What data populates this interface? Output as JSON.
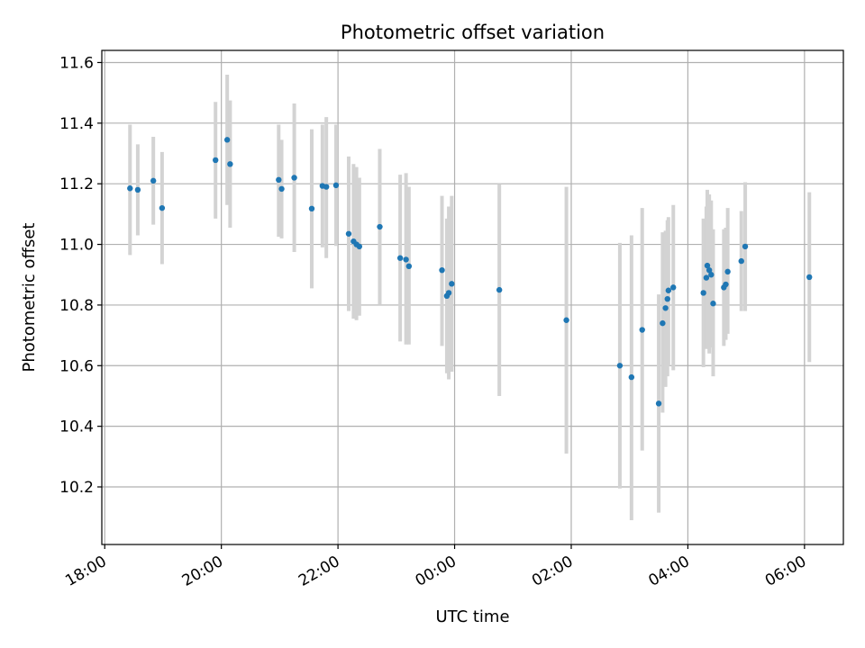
{
  "chart_data": {
    "type": "scatter",
    "title": "Photometric offset variation",
    "xlabel": "UTC time",
    "ylabel": "Photometric offset",
    "xlim": [
      "17:57",
      "06:40"
    ],
    "ylim": [
      10.01,
      11.64
    ],
    "grid": true,
    "legend": "none",
    "x_ticks": [
      "18:00",
      "20:00",
      "22:00",
      "00:00",
      "02:00",
      "04:00",
      "06:00"
    ],
    "y_ticks": [
      "10.2",
      "10.4",
      "10.6",
      "10.8",
      "11.0",
      "11.2",
      "11.4",
      "11.6"
    ],
    "colors": {
      "points": "#1f77b4",
      "errorbars": "#d3d3d3",
      "grid": "#b0b0b0"
    },
    "points": [
      {
        "x": "18:26",
        "y": 11.185,
        "lo": 10.965,
        "hi": 11.395
      },
      {
        "x": "18:34",
        "y": 11.18,
        "lo": 11.03,
        "hi": 11.33
      },
      {
        "x": "18:50",
        "y": 11.21,
        "lo": 11.065,
        "hi": 11.355
      },
      {
        "x": "18:59",
        "y": 11.12,
        "lo": 10.935,
        "hi": 11.305
      },
      {
        "x": "19:54",
        "y": 11.278,
        "lo": 11.085,
        "hi": 11.47
      },
      {
        "x": "20:06",
        "y": 11.345,
        "lo": 11.13,
        "hi": 11.56
      },
      {
        "x": "20:09",
        "y": 11.265,
        "lo": 11.055,
        "hi": 11.475
      },
      {
        "x": "20:59",
        "y": 11.213,
        "lo": 11.025,
        "hi": 11.395
      },
      {
        "x": "21:02",
        "y": 11.183,
        "lo": 11.02,
        "hi": 11.345
      },
      {
        "x": "21:15",
        "y": 11.22,
        "lo": 10.975,
        "hi": 11.465
      },
      {
        "x": "21:33",
        "y": 11.118,
        "lo": 10.855,
        "hi": 11.38
      },
      {
        "x": "21:44",
        "y": 11.193,
        "lo": 10.99,
        "hi": 11.395
      },
      {
        "x": "21:48",
        "y": 11.19,
        "lo": 10.955,
        "hi": 11.42
      },
      {
        "x": "21:58",
        "y": 11.195,
        "lo": 10.995,
        "hi": 11.395
      },
      {
        "x": "22:11",
        "y": 11.035,
        "lo": 10.78,
        "hi": 11.29
      },
      {
        "x": "22:16",
        "y": 11.01,
        "lo": 10.755,
        "hi": 11.265
      },
      {
        "x": "22:19",
        "y": 11.0,
        "lo": 10.75,
        "hi": 11.255
      },
      {
        "x": "22:22",
        "y": 10.993,
        "lo": 10.765,
        "hi": 11.22
      },
      {
        "x": "22:43",
        "y": 11.058,
        "lo": 10.8,
        "hi": 11.315
      },
      {
        "x": "23:04",
        "y": 10.955,
        "lo": 10.68,
        "hi": 11.23
      },
      {
        "x": "23:10",
        "y": 10.95,
        "lo": 10.67,
        "hi": 11.235
      },
      {
        "x": "23:13",
        "y": 10.928,
        "lo": 10.67,
        "hi": 11.19
      },
      {
        "x": "23:47",
        "y": 10.915,
        "lo": 10.665,
        "hi": 11.16
      },
      {
        "x": "23:52",
        "y": 10.83,
        "lo": 10.575,
        "hi": 11.085
      },
      {
        "x": "23:54",
        "y": 10.84,
        "lo": 10.555,
        "hi": 11.125
      },
      {
        "x": "23:57",
        "y": 10.87,
        "lo": 10.58,
        "hi": 11.16
      },
      {
        "x": "00:46",
        "y": 10.85,
        "lo": 10.5,
        "hi": 11.2
      },
      {
        "x": "01:55",
        "y": 10.75,
        "lo": 10.31,
        "hi": 11.19
      },
      {
        "x": "02:50",
        "y": 10.6,
        "lo": 10.195,
        "hi": 11.005
      },
      {
        "x": "03:02",
        "y": 10.562,
        "lo": 10.09,
        "hi": 11.03
      },
      {
        "x": "03:13",
        "y": 10.718,
        "lo": 10.32,
        "hi": 11.12
      },
      {
        "x": "03:30",
        "y": 10.475,
        "lo": 10.115,
        "hi": 10.835
      },
      {
        "x": "03:34",
        "y": 10.74,
        "lo": 10.445,
        "hi": 11.04
      },
      {
        "x": "03:37",
        "y": 10.79,
        "lo": 10.53,
        "hi": 11.045
      },
      {
        "x": "03:39",
        "y": 10.82,
        "lo": 10.565,
        "hi": 11.08
      },
      {
        "x": "03:40",
        "y": 10.848,
        "lo": 10.6,
        "hi": 11.09
      },
      {
        "x": "03:45",
        "y": 10.858,
        "lo": 10.585,
        "hi": 11.13
      },
      {
        "x": "04:16",
        "y": 10.84,
        "lo": 10.595,
        "hi": 11.085
      },
      {
        "x": "04:19",
        "y": 10.89,
        "lo": 10.655,
        "hi": 11.125
      },
      {
        "x": "04:20",
        "y": 10.93,
        "lo": 10.66,
        "hi": 11.18
      },
      {
        "x": "04:22",
        "y": 10.915,
        "lo": 10.64,
        "hi": 11.165
      },
      {
        "x": "04:24",
        "y": 10.9,
        "lo": 10.66,
        "hi": 11.145
      },
      {
        "x": "04:26",
        "y": 10.805,
        "lo": 10.565,
        "hi": 11.05
      },
      {
        "x": "04:37",
        "y": 10.858,
        "lo": 10.665,
        "hi": 11.05
      },
      {
        "x": "04:39",
        "y": 10.868,
        "lo": 10.685,
        "hi": 11.055
      },
      {
        "x": "04:41",
        "y": 10.91,
        "lo": 10.705,
        "hi": 11.12
      },
      {
        "x": "04:55",
        "y": 10.945,
        "lo": 10.78,
        "hi": 11.11
      },
      {
        "x": "04:59",
        "y": 10.993,
        "lo": 10.78,
        "hi": 11.205
      },
      {
        "x": "06:05",
        "y": 10.892,
        "lo": 10.612,
        "hi": 11.172
      }
    ]
  }
}
